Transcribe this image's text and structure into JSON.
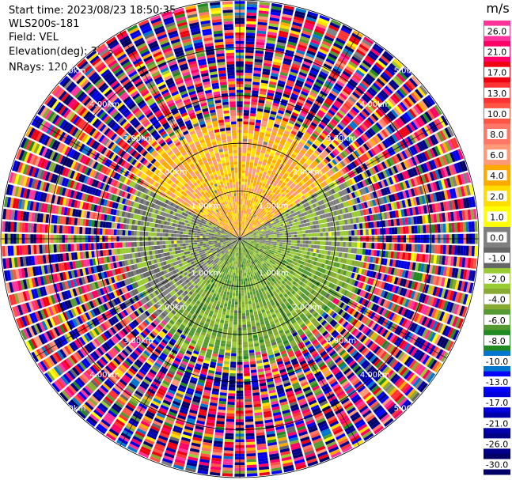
{
  "header": {
    "start_time": "Start time: 2023/08/23 18:50:35",
    "instrument": "WLS200s-181",
    "field": "Field: VEL",
    "elevation": "Elevation(deg): 35.30",
    "nrays": "NRays: 120"
  },
  "chart_data": {
    "type": "heatmap",
    "subtype": "polar-ppi",
    "title": "",
    "nrays": 120,
    "elevation_deg": 35.3,
    "field": "VEL",
    "range_rings_km": [
      1.0,
      2.0,
      3.0,
      4.0,
      5.0
    ],
    "range_ring_labels": [
      "1.00km",
      "2.00km",
      "3.00km",
      "4.00km",
      "5.00km"
    ],
    "max_range_km": 5.0,
    "grid": true,
    "spokes_deg": [
      0,
      30,
      60,
      90,
      120,
      150,
      180,
      210,
      240,
      270,
      300,
      330
    ],
    "colorbar": {
      "unit": "m/s",
      "placement": "right",
      "ticks": [
        26.0,
        21.0,
        17.0,
        13.0,
        10.0,
        8.0,
        6.0,
        4.0,
        2.0,
        1.0,
        0.0,
        -1.0,
        -2.0,
        -4.0,
        -6.0,
        -8.0,
        -10.0,
        -13.0,
        -17.0,
        -21.0,
        -26.0,
        -30.0
      ],
      "tick_labels": [
        "26.0",
        "21.0",
        "17.0",
        "13.0",
        "10.0",
        "8.0",
        "6.0",
        "4.0",
        "2.0",
        "1.0",
        "0.0",
        "-1.0",
        "-2.0",
        "-4.0",
        "-6.0",
        "-8.0",
        "-10.0",
        "-13.0",
        "-17.0",
        "-21.0",
        "-26.0",
        "-30.0"
      ],
      "bins": [
        {
          "from": 26,
          "to": 30,
          "color": "#ff3399"
        },
        {
          "from": 21,
          "to": 26,
          "color": "#ff0066"
        },
        {
          "from": 17,
          "to": 21,
          "color": "#ee0011"
        },
        {
          "from": 13,
          "to": 17,
          "color": "#ff3333"
        },
        {
          "from": 10,
          "to": 13,
          "color": "#ff5544"
        },
        {
          "from": 8,
          "to": 10,
          "color": "#ff7766"
        },
        {
          "from": 6,
          "to": 8,
          "color": "#ff9977"
        },
        {
          "from": 4,
          "to": 6,
          "color": "#ffaa00"
        },
        {
          "from": 2,
          "to": 4,
          "color": "#ffdd00"
        },
        {
          "from": 1,
          "to": 2,
          "color": "#ffff00"
        },
        {
          "from": 0,
          "to": 1,
          "color": "#808080"
        },
        {
          "from": -1,
          "to": 0,
          "color": "#666666"
        },
        {
          "from": -2,
          "to": -1,
          "color": "#99cc33"
        },
        {
          "from": -4,
          "to": -2,
          "color": "#88aa33"
        },
        {
          "from": -6,
          "to": -4,
          "color": "#559933"
        },
        {
          "from": -8,
          "to": -6,
          "color": "#228822"
        },
        {
          "from": -10,
          "to": -8,
          "color": "#0077cc"
        },
        {
          "from": -13,
          "to": -10,
          "color": "#0000ff"
        },
        {
          "from": -17,
          "to": -13,
          "color": "#0000dd"
        },
        {
          "from": -21,
          "to": -17,
          "color": "#0000aa"
        },
        {
          "from": -26,
          "to": -21,
          "color": "#000088"
        },
        {
          "from": -30,
          "to": -26,
          "color": "#000066"
        }
      ]
    },
    "velocity_pattern": {
      "near_field_max_km": 2.5,
      "near_field_sectors": [
        {
          "az_from": -60,
          "az_to": 60,
          "dominant_mps": [
            2.0,
            4.0,
            6.0
          ],
          "description_note": ""
        },
        {
          "az_from": 60,
          "az_to": 100,
          "dominant_mps": [
            0.0,
            -2.0
          ]
        },
        {
          "az_from": 100,
          "az_to": 220,
          "dominant_mps": [
            -6.0,
            -4.0,
            -2.0
          ]
        },
        {
          "az_from": 220,
          "az_to": 300,
          "dominant_mps": [
            0.0,
            -1.0,
            -2.0
          ]
        }
      ],
      "far_field": "noisy, all values"
    }
  }
}
